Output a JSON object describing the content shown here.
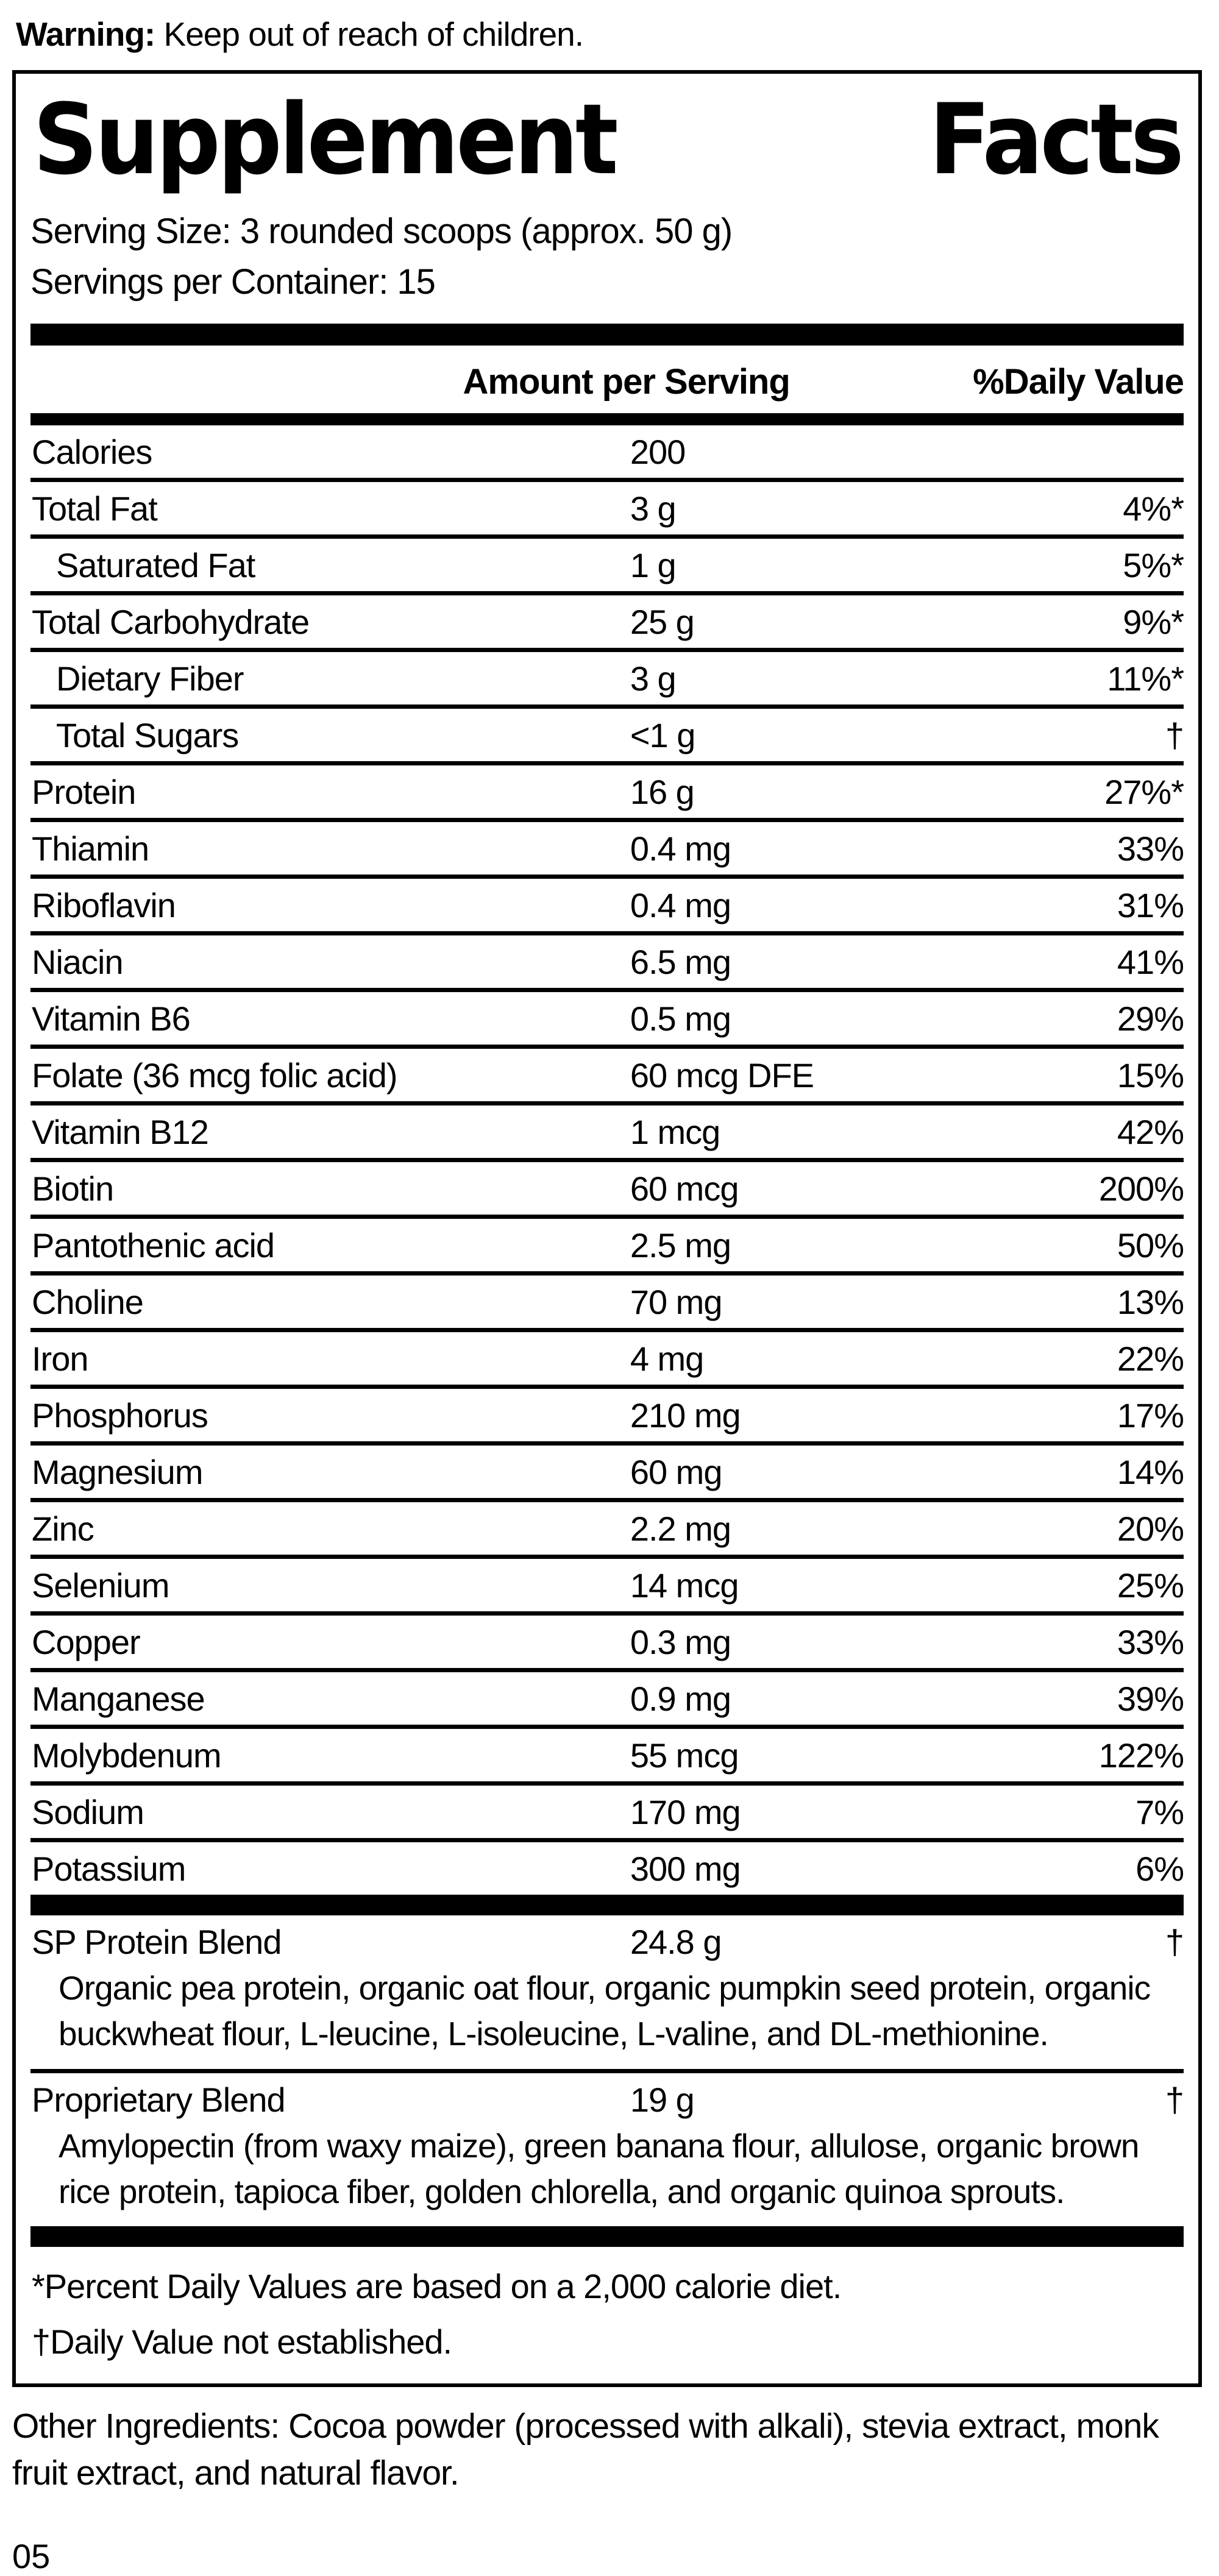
{
  "warning": {
    "label": "Warning:",
    "text": " Keep out of reach of children."
  },
  "panel": {
    "title_left": "Supplement",
    "title_right": "Facts",
    "serving_size": "Serving Size: 3 rounded scoops (approx. 50 g)",
    "servings_per_container": "Servings per Container: 15",
    "columns": {
      "amount": "Amount per Serving",
      "daily_value": "%Daily Value"
    },
    "rows": [
      {
        "name": "Calories",
        "amount": "200",
        "dv": "",
        "indent": false
      },
      {
        "name": "Total Fat",
        "amount": "3 g",
        "dv": "4%*",
        "indent": false
      },
      {
        "name": "Saturated Fat",
        "amount": "1 g",
        "dv": "5%*",
        "indent": true
      },
      {
        "name": "Total Carbohydrate",
        "amount": "25 g",
        "dv": "9%*",
        "indent": false
      },
      {
        "name": "Dietary Fiber",
        "amount": "3 g",
        "dv": "11%*",
        "indent": true
      },
      {
        "name": "Total Sugars",
        "amount": "<1 g",
        "dv": "†",
        "indent": true
      },
      {
        "name": "Protein",
        "amount": "16 g",
        "dv": "27%*",
        "indent": false
      },
      {
        "name": "Thiamin",
        "amount": "0.4 mg",
        "dv": "33%",
        "indent": false
      },
      {
        "name": "Riboflavin",
        "amount": "0.4 mg",
        "dv": "31%",
        "indent": false
      },
      {
        "name": "Niacin",
        "amount": "6.5 mg",
        "dv": "41%",
        "indent": false
      },
      {
        "name": "Vitamin B6",
        "amount": "0.5 mg",
        "dv": "29%",
        "indent": false
      },
      {
        "name": "Folate (36 mcg folic acid)",
        "amount": "60 mcg DFE",
        "dv": "15%",
        "indent": false
      },
      {
        "name": "Vitamin B12",
        "amount": "1 mcg",
        "dv": "42%",
        "indent": false
      },
      {
        "name": "Biotin",
        "amount": "60 mcg",
        "dv": "200%",
        "indent": false
      },
      {
        "name": "Pantothenic acid",
        "amount": "2.5 mg",
        "dv": "50%",
        "indent": false
      },
      {
        "name": "Choline",
        "amount": "70 mg",
        "dv": "13%",
        "indent": false
      },
      {
        "name": "Iron",
        "amount": "4 mg",
        "dv": "22%",
        "indent": false
      },
      {
        "name": "Phosphorus",
        "amount": "210 mg",
        "dv": "17%",
        "indent": false
      },
      {
        "name": "Magnesium",
        "amount": "60 mg",
        "dv": "14%",
        "indent": false
      },
      {
        "name": "Zinc",
        "amount": "2.2 mg",
        "dv": "20%",
        "indent": false
      },
      {
        "name": "Selenium",
        "amount": "14 mcg",
        "dv": "25%",
        "indent": false
      },
      {
        "name": "Copper",
        "amount": "0.3 mg",
        "dv": "33%",
        "indent": false
      },
      {
        "name": "Manganese",
        "amount": "0.9 mg",
        "dv": "39%",
        "indent": false
      },
      {
        "name": "Molybdenum",
        "amount": "55 mcg",
        "dv": "122%",
        "indent": false
      },
      {
        "name": "Sodium",
        "amount": "170 mg",
        "dv": "7%",
        "indent": false
      },
      {
        "name": "Potassium",
        "amount": "300 mg",
        "dv": "6%",
        "indent": false
      }
    ],
    "blends": [
      {
        "name": "SP Protein Blend",
        "amount": "24.8 g",
        "dv": "†",
        "desc": "Organic pea protein, organic oat flour, organic pumpkin seed protein, organic buckwheat flour, L-leucine, L-isoleucine, L-valine, and DL-methionine."
      },
      {
        "name": "Proprietary Blend",
        "amount": "19 g",
        "dv": "†",
        "desc": "Amylopectin (from waxy maize), green banana flour, allulose, organic brown rice protein, tapioca fiber, golden chlorella, and organic quinoa sprouts."
      }
    ],
    "footnotes": [
      "*Percent Daily Values are based on a 2,000 calorie diet.",
      "†Daily Value not established."
    ]
  },
  "other_ingredients": "Other Ingredients: Cocoa powder (processed with alkali), stevia extract, monk fruit extract, and natural flavor.",
  "page_code": "05",
  "colors": {
    "ink": "#000000",
    "paper": "#ffffff"
  }
}
